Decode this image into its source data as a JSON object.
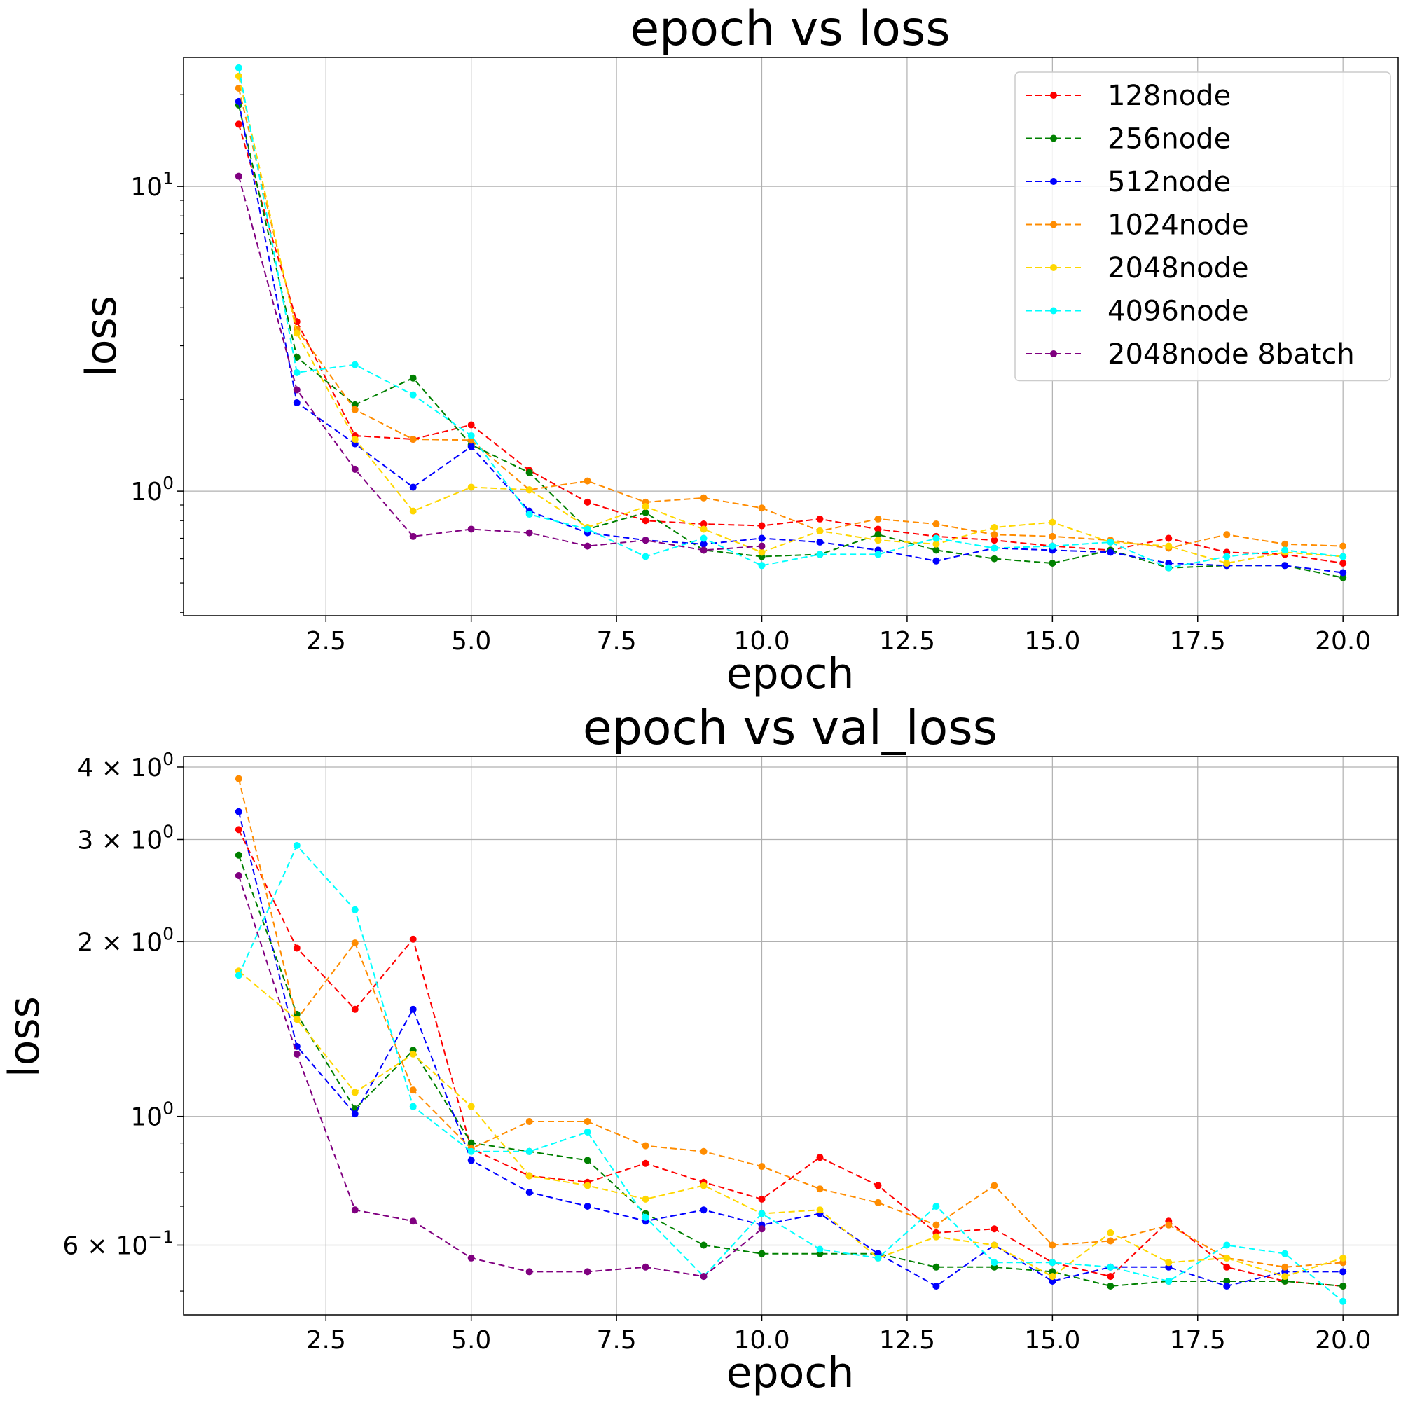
{
  "chart_data": [
    {
      "type": "line",
      "title": "epoch vs loss",
      "xlabel": "epoch",
      "ylabel": "loss",
      "yscale": "log",
      "xlim": [
        0.05,
        20.95
      ],
      "ylim": [
        0.39,
        26.5
      ],
      "xticks": [
        2.5,
        5.0,
        7.5,
        10.0,
        12.5,
        15.0,
        17.5,
        20.0
      ],
      "xtick_labels": [
        "2.5",
        "5.0",
        "7.5",
        "10.0",
        "12.5",
        "15.0",
        "17.5",
        "20.0"
      ],
      "yticks": [
        {
          "value": 10,
          "base": "10",
          "exp": "1"
        },
        {
          "value": 1,
          "base": "10",
          "exp": "0"
        }
      ],
      "grid": true,
      "legend": {
        "position": "top-right"
      },
      "x": [
        1,
        2,
        3,
        4,
        5,
        6,
        7,
        8,
        9,
        10,
        11,
        12,
        13,
        14,
        15,
        16,
        17,
        18,
        19,
        20
      ],
      "series": [
        {
          "name": "128node",
          "color": "#ff0000",
          "values": [
            16.0,
            3.6,
            1.52,
            1.48,
            1.65,
            1.17,
            0.92,
            0.8,
            0.78,
            0.77,
            0.81,
            0.75,
            0.71,
            0.69,
            0.66,
            0.64,
            0.7,
            0.63,
            0.62,
            0.58
          ]
        },
        {
          "name": "256node",
          "color": "#008000",
          "values": [
            18.5,
            2.75,
            1.92,
            2.35,
            1.42,
            1.15,
            0.75,
            0.85,
            0.64,
            0.61,
            0.62,
            0.72,
            0.64,
            0.6,
            0.58,
            0.64,
            0.56,
            0.57,
            0.57,
            0.52
          ]
        },
        {
          "name": "512node",
          "color": "#0000ff",
          "values": [
            19.0,
            1.95,
            1.43,
            1.03,
            1.4,
            0.86,
            0.73,
            0.69,
            0.67,
            0.7,
            0.68,
            0.64,
            0.59,
            0.65,
            0.64,
            0.63,
            0.58,
            0.57,
            0.57,
            0.54
          ]
        },
        {
          "name": "1024node",
          "color": "#ff8c00",
          "values": [
            21.0,
            3.4,
            1.85,
            1.48,
            1.47,
            1.01,
            1.08,
            0.92,
            0.95,
            0.88,
            0.74,
            0.81,
            0.78,
            0.72,
            0.71,
            0.69,
            0.65,
            0.72,
            0.67,
            0.66
          ]
        },
        {
          "name": "2048node",
          "color": "#ffd700",
          "values": [
            23.0,
            3.3,
            1.48,
            0.86,
            1.03,
            1.01,
            0.76,
            0.89,
            0.75,
            0.63,
            0.74,
            0.69,
            0.67,
            0.76,
            0.79,
            0.68,
            0.66,
            0.58,
            0.63,
            0.61
          ]
        },
        {
          "name": "4096node",
          "color": "#00ffff",
          "values": [
            24.5,
            2.45,
            2.6,
            2.07,
            1.52,
            0.84,
            0.75,
            0.61,
            0.7,
            0.57,
            0.62,
            0.62,
            0.7,
            0.65,
            0.66,
            0.68,
            0.56,
            0.61,
            0.64,
            0.61
          ]
        },
        {
          "name": "2048node 8batch",
          "color": "#800080",
          "values": [
            10.8,
            2.15,
            1.18,
            0.71,
            0.75,
            0.73,
            0.66,
            0.69,
            0.64,
            0.66,
            null,
            null,
            null,
            null,
            null,
            null,
            null,
            null,
            null,
            null
          ]
        }
      ]
    },
    {
      "type": "line",
      "title": "epoch vs val_loss",
      "xlabel": "epoch",
      "ylabel": "loss",
      "yscale": "log",
      "xlim": [
        0.05,
        20.95
      ],
      "ylim": [
        0.455,
        4.17
      ],
      "xticks": [
        2.5,
        5.0,
        7.5,
        10.0,
        12.5,
        15.0,
        17.5,
        20.0
      ],
      "xtick_labels": [
        "2.5",
        "5.0",
        "7.5",
        "10.0",
        "12.5",
        "15.0",
        "17.5",
        "20.0"
      ],
      "yticks": [
        {
          "value": 4,
          "base": "4 × 10",
          "exp": "0"
        },
        {
          "value": 3,
          "base": "3 × 10",
          "exp": "0"
        },
        {
          "value": 2,
          "base": "2 × 10",
          "exp": "0"
        },
        {
          "value": 1,
          "base": "10",
          "exp": "0"
        },
        {
          "value": 0.6,
          "base": "6 × 10",
          "exp": "−1"
        }
      ],
      "grid": true,
      "x": [
        1,
        2,
        3,
        4,
        5,
        6,
        7,
        8,
        9,
        10,
        11,
        12,
        13,
        14,
        15,
        16,
        17,
        18,
        19,
        20
      ],
      "series": [
        {
          "name": "128node",
          "color": "#ff0000",
          "values": [
            3.12,
            1.95,
            1.53,
            2.02,
            0.88,
            0.79,
            0.77,
            0.83,
            0.77,
            0.72,
            0.85,
            0.76,
            0.63,
            0.64,
            0.56,
            0.53,
            0.66,
            0.55,
            0.52,
            0.51
          ]
        },
        {
          "name": "256node",
          "color": "#008000",
          "values": [
            2.82,
            1.5,
            1.03,
            1.3,
            0.9,
            0.87,
            0.84,
            0.68,
            0.6,
            0.58,
            0.58,
            0.58,
            0.55,
            0.55,
            0.54,
            0.51,
            0.52,
            0.52,
            0.52,
            0.51
          ]
        },
        {
          "name": "512node",
          "color": "#0000ff",
          "values": [
            3.35,
            1.32,
            1.01,
            1.53,
            0.84,
            0.74,
            0.7,
            0.66,
            0.69,
            0.65,
            0.68,
            0.58,
            0.51,
            0.6,
            0.52,
            0.55,
            0.55,
            0.51,
            0.54,
            0.54
          ]
        },
        {
          "name": "1024node",
          "color": "#ff8c00",
          "values": [
            3.82,
            1.47,
            1.99,
            1.11,
            0.88,
            0.98,
            0.98,
            0.89,
            0.87,
            0.82,
            0.75,
            0.71,
            0.65,
            0.76,
            0.6,
            0.61,
            0.65,
            0.57,
            0.55,
            0.56
          ]
        },
        {
          "name": "2048node",
          "color": "#ffd700",
          "values": [
            1.78,
            1.47,
            1.1,
            1.28,
            1.04,
            0.79,
            0.76,
            0.72,
            0.76,
            0.68,
            0.69,
            0.57,
            0.62,
            0.6,
            0.53,
            0.63,
            0.56,
            0.57,
            0.53,
            0.57
          ]
        },
        {
          "name": "4096node",
          "color": "#00ffff",
          "values": [
            1.75,
            2.93,
            2.27,
            1.04,
            0.87,
            0.87,
            0.94,
            0.67,
            0.53,
            0.68,
            0.59,
            0.57,
            0.7,
            0.56,
            0.56,
            0.55,
            0.52,
            0.6,
            0.58,
            0.48
          ]
        },
        {
          "name": "2048node 8batch",
          "color": "#800080",
          "values": [
            2.6,
            1.28,
            0.69,
            0.66,
            0.57,
            0.54,
            0.54,
            0.55,
            0.53,
            0.64,
            null,
            null,
            null,
            null,
            null,
            null,
            null,
            null,
            null,
            null
          ]
        }
      ]
    }
  ]
}
